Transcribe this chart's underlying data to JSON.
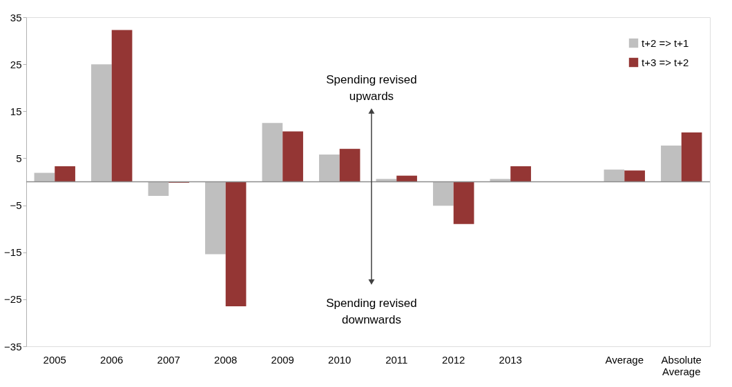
{
  "chart_data": {
    "type": "bar",
    "categories": [
      "2005",
      "2006",
      "2007",
      "2008",
      "2009",
      "2010",
      "2011",
      "2012",
      "2013",
      null,
      "Average",
      "Absolute Average"
    ],
    "series": [
      {
        "name": "t+2 => t+1",
        "color": "#bfbfbf",
        "values": [
          1.9,
          25.0,
          -3.0,
          -15.4,
          12.5,
          5.8,
          0.6,
          -5.1,
          0.6,
          null,
          2.6,
          7.7
        ]
      },
      {
        "name": "t+3 => t+2",
        "color": "#943634",
        "values": [
          3.3,
          32.3,
          -0.2,
          -26.5,
          10.7,
          7.0,
          1.3,
          -9.0,
          3.3,
          null,
          2.4,
          10.5
        ]
      }
    ],
    "ylim": [
      -35,
      35
    ],
    "yticks": [
      -35,
      -25,
      -15,
      -5,
      5,
      15,
      25,
      35
    ],
    "annotations": [
      "Spending revised upwards",
      "Spending revised downwards"
    ],
    "grid": false,
    "legend": "top right"
  }
}
